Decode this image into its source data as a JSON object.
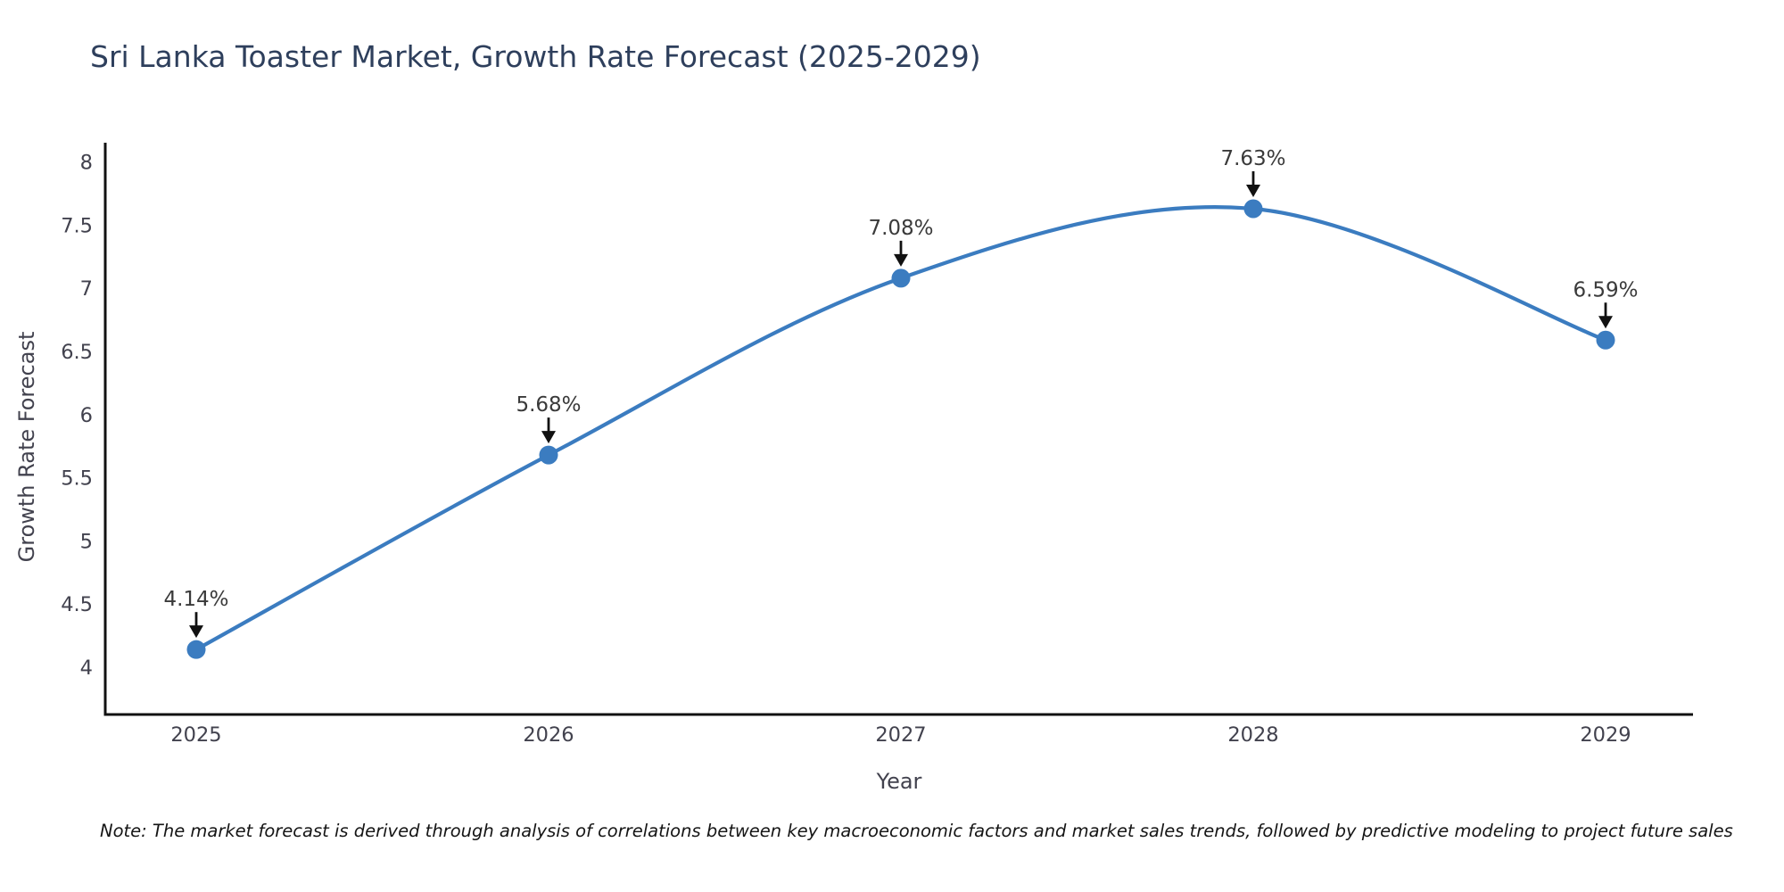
{
  "chart_data": {
    "type": "line",
    "title": "Sri Lanka Toaster Market, Growth Rate Forecast (2025-2029)",
    "xlabel": "Year",
    "ylabel": "Growth Rate Forecast",
    "categories": [
      "2025",
      "2026",
      "2027",
      "2028",
      "2029"
    ],
    "values": [
      4.14,
      5.68,
      7.08,
      7.63,
      6.59
    ],
    "point_labels": [
      "4.14%",
      "5.68%",
      "7.08%",
      "7.63%",
      "6.59%"
    ],
    "yticks": [
      4,
      4.5,
      5,
      5.5,
      6,
      6.5,
      7,
      7.5,
      8
    ],
    "ylim": [
      3.6,
      8.2
    ],
    "grid": false,
    "legend": "none",
    "smooth_curve": true,
    "annotations_with_arrows": true,
    "line_color": "#3b7cc0",
    "marker_color": "#3b7cc0",
    "annotation_color": "#3a3a3a",
    "arrow_color": "#111111",
    "axis_color": "#111111",
    "tick_color": "#42424e",
    "title_color": "#2e3f5c"
  },
  "footnote": "Note: The market forecast is derived through analysis of correlations between key macroeconomic factors and market sales trends, followed by predictive modeling to project future sales"
}
